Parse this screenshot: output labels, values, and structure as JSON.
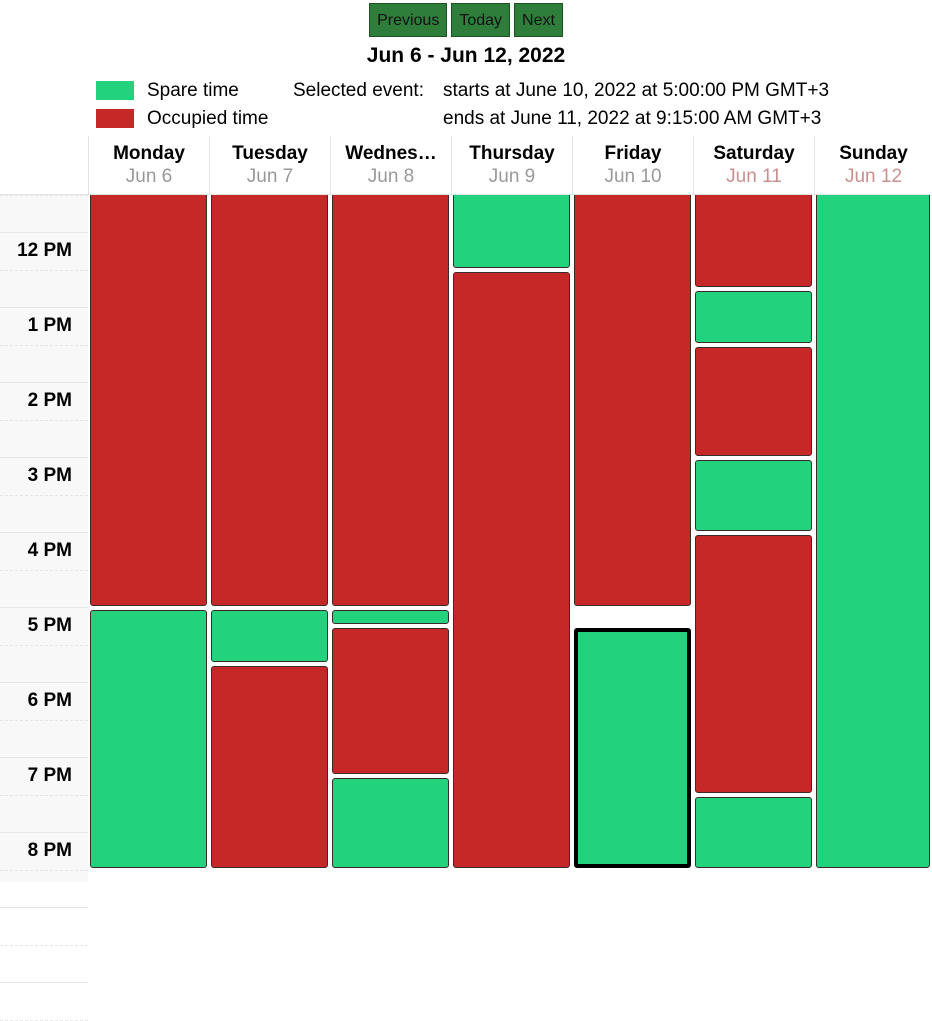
{
  "toolbar": {
    "previous_label": "Previous",
    "today_label": "Today",
    "next_label": "Next"
  },
  "range_title": "Jun 6 - Jun 12, 2022",
  "legend": [
    {
      "label": "Spare time",
      "color": "#23d27c"
    },
    {
      "label": "Occupied time",
      "color": "#c62828"
    }
  ],
  "selected_event": {
    "heading": "Selected event:",
    "starts": "starts at June 10, 2022 at 5:00:00 PM GMT+3",
    "ends": "ends at June 11, 2022 at 9:15:00 AM GMT+3"
  },
  "days": [
    {
      "name": "Monday",
      "date": "Jun 6"
    },
    {
      "name": "Tuesday",
      "date": "Jun 7"
    },
    {
      "name": "Wednes…",
      "date": "Jun 8"
    },
    {
      "name": "Thursday",
      "date": "Jun 9"
    },
    {
      "name": "Friday",
      "date": "Jun 10"
    },
    {
      "name": "Saturday",
      "date": "Jun 11",
      "weekend": true
    },
    {
      "name": "Sunday",
      "date": "Jun 12",
      "weekend": true
    }
  ],
  "time_labels": [
    "12 PM",
    "1 PM",
    "2 PM",
    "3 PM",
    "4 PM",
    "5 PM",
    "6 PM",
    "7 PM",
    "8 PM"
  ],
  "events": [
    {
      "day": 0,
      "type": "occupied",
      "start": "11:15",
      "end": "16:45"
    },
    {
      "day": 0,
      "type": "spare",
      "start": "16:45",
      "end": "20:15"
    },
    {
      "day": 1,
      "type": "occupied",
      "start": "11:15",
      "end": "16:45"
    },
    {
      "day": 1,
      "type": "spare",
      "start": "16:45",
      "end": "17:30"
    },
    {
      "day": 1,
      "type": "occupied",
      "start": "17:30",
      "end": "20:15"
    },
    {
      "day": 2,
      "type": "occupied",
      "start": "11:15",
      "end": "16:45"
    },
    {
      "day": 2,
      "type": "spare",
      "start": "16:45",
      "end": "17:00"
    },
    {
      "day": 2,
      "type": "occupied",
      "start": "17:00",
      "end": "19:00"
    },
    {
      "day": 2,
      "type": "spare",
      "start": "19:00",
      "end": "20:15"
    },
    {
      "day": 3,
      "type": "spare",
      "start": "11:15",
      "end": "12:15"
    },
    {
      "day": 3,
      "type": "occupied",
      "start": "12:15",
      "end": "20:15"
    },
    {
      "day": 4,
      "type": "occupied",
      "start": "11:15",
      "end": "16:45"
    },
    {
      "day": 4,
      "type": "spare",
      "start": "17:00",
      "end": "20:15",
      "selected": true
    },
    {
      "day": 5,
      "type": "occupied",
      "start": "11:15",
      "end": "12:30"
    },
    {
      "day": 5,
      "type": "spare",
      "start": "12:30",
      "end": "13:15"
    },
    {
      "day": 5,
      "type": "occupied",
      "start": "13:15",
      "end": "14:45"
    },
    {
      "day": 5,
      "type": "spare",
      "start": "14:45",
      "end": "15:45"
    },
    {
      "day": 5,
      "type": "occupied",
      "start": "15:45",
      "end": "19:15"
    },
    {
      "day": 5,
      "type": "spare",
      "start": "19:15",
      "end": "20:15"
    },
    {
      "day": 6,
      "type": "spare",
      "start": "11:15",
      "end": "20:15"
    }
  ]
}
